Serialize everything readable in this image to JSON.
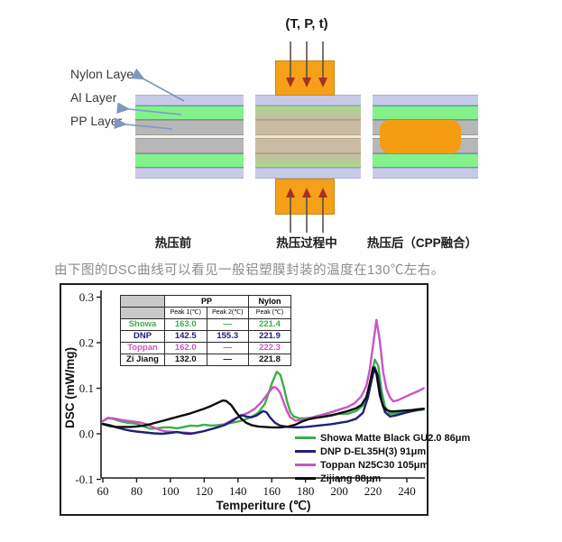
{
  "diagram": {
    "press_label": "(T, P, t)",
    "layer_labels": [
      "Nylon Layer",
      "Al Layer",
      "PP Layer"
    ],
    "captions": [
      "热压前",
      "热压过程中",
      "热压后（CPP融合）"
    ],
    "colors": {
      "nylon": "#c8cbe8",
      "al_green": "#84f18b",
      "pp_gray": "#b7b7b9",
      "seam": "#f4f2ea",
      "melted_green_top": "#a9d890",
      "melted_tan": "#c9bca3",
      "melted_seam": "#efe7d5",
      "press_orange": "#f6a01a",
      "cpp_blob": "#f59d12",
      "label_arrow": "#7e96c2",
      "press_arrow_stem": "#56514a",
      "press_arrow_head": "#a53125"
    }
  },
  "description": "由下图的DSC曲线可以看见一般铝塑膜封装的温度在130℃左右。",
  "chart_data": {
    "type": "line",
    "title": "",
    "xlabel": "Temperiture (℃)",
    "ylabel": "DSC (mW/mg)",
    "xlim": [
      55,
      252
    ],
    "ylim": [
      -0.1,
      0.31
    ],
    "grid": false,
    "legend_position": "lower right inside",
    "xticks": [
      60,
      80,
      100,
      120,
      140,
      160,
      180,
      200,
      220,
      240
    ],
    "ytick_labels": [
      "0.3",
      "0.2",
      "0.1",
      "0.0",
      "-0.1"
    ],
    "series": [
      {
        "name": "Showa",
        "legend_label": "Showa Matte Black GU2.0 86μm",
        "color": "#3bae4b",
        "points": [
          [
            60,
            0.028
          ],
          [
            63,
            0.034
          ],
          [
            66,
            0.033
          ],
          [
            70,
            0.028
          ],
          [
            75,
            0.024
          ],
          [
            80,
            0.022
          ],
          [
            85,
            0.015
          ],
          [
            88,
            0.011
          ],
          [
            92,
            0.012
          ],
          [
            96,
            0.014
          ],
          [
            100,
            0.014
          ],
          [
            104,
            0.012
          ],
          [
            108,
            0.015
          ],
          [
            112,
            0.018
          ],
          [
            116,
            0.017
          ],
          [
            120,
            0.02
          ],
          [
            124,
            0.018
          ],
          [
            128,
            0.019
          ],
          [
            132,
            0.021
          ],
          [
            136,
            0.024
          ],
          [
            140,
            0.027
          ],
          [
            144,
            0.031
          ],
          [
            148,
            0.037
          ],
          [
            152,
            0.046
          ],
          [
            156,
            0.066
          ],
          [
            160,
            0.11
          ],
          [
            163,
            0.136
          ],
          [
            165,
            0.13
          ],
          [
            167,
            0.105
          ],
          [
            169,
            0.072
          ],
          [
            171,
            0.048
          ],
          [
            173,
            0.038
          ],
          [
            176,
            0.034
          ],
          [
            180,
            0.034
          ],
          [
            185,
            0.036
          ],
          [
            190,
            0.039
          ],
          [
            195,
            0.041
          ],
          [
            200,
            0.044
          ],
          [
            205,
            0.044
          ],
          [
            210,
            0.05
          ],
          [
            214,
            0.062
          ],
          [
            217,
            0.09
          ],
          [
            219,
            0.125
          ],
          [
            221,
            0.163
          ],
          [
            223,
            0.15
          ],
          [
            225,
            0.095
          ],
          [
            227,
            0.06
          ],
          [
            230,
            0.044
          ],
          [
            233,
            0.045
          ],
          [
            237,
            0.047
          ],
          [
            241,
            0.049
          ],
          [
            245,
            0.051
          ],
          [
            250,
            0.053
          ]
        ]
      },
      {
        "name": "Toppan",
        "legend_label": "Toppan N25C30 105μm",
        "color": "#cb54c5",
        "points": [
          [
            60,
            0.028
          ],
          [
            63,
            0.035
          ],
          [
            66,
            0.034
          ],
          [
            70,
            0.031
          ],
          [
            74,
            0.029
          ],
          [
            78,
            0.027
          ],
          [
            82,
            0.025
          ],
          [
            86,
            0.021
          ],
          [
            90,
            0.014
          ],
          [
            94,
            0.008
          ],
          [
            98,
            0.005
          ],
          [
            102,
            0.004
          ],
          [
            106,
            0.003
          ],
          [
            110,
            0.002
          ],
          [
            114,
            0.001
          ],
          [
            118,
            0.004
          ],
          [
            122,
            0.008
          ],
          [
            126,
            0.012
          ],
          [
            130,
            0.017
          ],
          [
            134,
            0.025
          ],
          [
            138,
            0.033
          ],
          [
            142,
            0.04
          ],
          [
            146,
            0.046
          ],
          [
            150,
            0.055
          ],
          [
            154,
            0.07
          ],
          [
            158,
            0.09
          ],
          [
            161,
            0.103
          ],
          [
            163,
            0.1
          ],
          [
            165,
            0.09
          ],
          [
            167,
            0.07
          ],
          [
            169,
            0.05
          ],
          [
            171,
            0.036
          ],
          [
            174,
            0.029
          ],
          [
            178,
            0.03
          ],
          [
            182,
            0.034
          ],
          [
            186,
            0.038
          ],
          [
            190,
            0.042
          ],
          [
            195,
            0.047
          ],
          [
            200,
            0.053
          ],
          [
            205,
            0.059
          ],
          [
            209,
            0.067
          ],
          [
            213,
            0.082
          ],
          [
            216,
            0.105
          ],
          [
            218,
            0.14
          ],
          [
            220,
            0.195
          ],
          [
            222,
            0.25
          ],
          [
            224,
            0.205
          ],
          [
            226,
            0.135
          ],
          [
            228,
            0.098
          ],
          [
            230,
            0.08
          ],
          [
            232,
            0.071
          ],
          [
            235,
            0.074
          ],
          [
            239,
            0.081
          ],
          [
            243,
            0.088
          ],
          [
            247,
            0.094
          ],
          [
            250,
            0.1
          ]
        ]
      },
      {
        "name": "DNP",
        "legend_label": "DNP D-EL35H(3) 91μm",
        "color": "#20207a",
        "points": [
          [
            60,
            0.022
          ],
          [
            64,
            0.019
          ],
          [
            68,
            0.014
          ],
          [
            72,
            0.01
          ],
          [
            76,
            0.007
          ],
          [
            80,
            0.005
          ],
          [
            85,
            0.003
          ],
          [
            90,
            0.001
          ],
          [
            95,
            0.0
          ],
          [
            100,
            0.002
          ],
          [
            104,
            0.004
          ],
          [
            108,
            0.001
          ],
          [
            112,
            0.0
          ],
          [
            116,
            0.003
          ],
          [
            120,
            0.006
          ],
          [
            124,
            0.01
          ],
          [
            128,
            0.014
          ],
          [
            132,
            0.019
          ],
          [
            136,
            0.027
          ],
          [
            140,
            0.036
          ],
          [
            142,
            0.041
          ],
          [
            145,
            0.038
          ],
          [
            148,
            0.036
          ],
          [
            151,
            0.04
          ],
          [
            155,
            0.05
          ],
          [
            157,
            0.047
          ],
          [
            159,
            0.036
          ],
          [
            162,
            0.024
          ],
          [
            165,
            0.018
          ],
          [
            170,
            0.015
          ],
          [
            175,
            0.014
          ],
          [
            180,
            0.015
          ],
          [
            185,
            0.017
          ],
          [
            190,
            0.019
          ],
          [
            195,
            0.021
          ],
          [
            200,
            0.024
          ],
          [
            205,
            0.027
          ],
          [
            210,
            0.033
          ],
          [
            214,
            0.046
          ],
          [
            217,
            0.08
          ],
          [
            219,
            0.115
          ],
          [
            221,
            0.146
          ],
          [
            223,
            0.125
          ],
          [
            225,
            0.072
          ],
          [
            227,
            0.048
          ],
          [
            230,
            0.038
          ],
          [
            233,
            0.04
          ],
          [
            237,
            0.044
          ],
          [
            241,
            0.048
          ],
          [
            245,
            0.051
          ],
          [
            250,
            0.055
          ]
        ]
      },
      {
        "name": "Zi Jiang",
        "legend_label": "Zijiang 88μm",
        "color": "#0d0d0d",
        "points": [
          [
            60,
            0.021
          ],
          [
            64,
            0.017
          ],
          [
            68,
            0.015
          ],
          [
            72,
            0.015
          ],
          [
            76,
            0.015
          ],
          [
            80,
            0.016
          ],
          [
            84,
            0.018
          ],
          [
            88,
            0.021
          ],
          [
            92,
            0.025
          ],
          [
            96,
            0.029
          ],
          [
            100,
            0.033
          ],
          [
            104,
            0.037
          ],
          [
            108,
            0.041
          ],
          [
            112,
            0.045
          ],
          [
            116,
            0.05
          ],
          [
            120,
            0.055
          ],
          [
            124,
            0.061
          ],
          [
            128,
            0.068
          ],
          [
            131,
            0.073
          ],
          [
            133,
            0.072
          ],
          [
            136,
            0.063
          ],
          [
            139,
            0.047
          ],
          [
            142,
            0.033
          ],
          [
            145,
            0.024
          ],
          [
            148,
            0.019
          ],
          [
            152,
            0.016
          ],
          [
            156,
            0.015
          ],
          [
            160,
            0.014
          ],
          [
            165,
            0.014
          ],
          [
            170,
            0.016
          ],
          [
            174,
            0.02
          ],
          [
            178,
            0.027
          ],
          [
            182,
            0.032
          ],
          [
            186,
            0.035
          ],
          [
            190,
            0.037
          ],
          [
            195,
            0.04
          ],
          [
            200,
            0.045
          ],
          [
            205,
            0.05
          ],
          [
            210,
            0.056
          ],
          [
            213,
            0.063
          ],
          [
            216,
            0.08
          ],
          [
            218,
            0.11
          ],
          [
            220,
            0.146
          ],
          [
            222,
            0.132
          ],
          [
            224,
            0.085
          ],
          [
            226,
            0.06
          ],
          [
            228,
            0.052
          ],
          [
            231,
            0.049
          ],
          [
            235,
            0.05
          ],
          [
            239,
            0.051
          ],
          [
            243,
            0.052
          ],
          [
            247,
            0.054
          ],
          [
            250,
            0.055
          ]
        ]
      }
    ],
    "legend_order": [
      "Showa",
      "DNP",
      "Toppan",
      "Zi Jiang"
    ],
    "inset_table": {
      "group_headers": [
        "PP",
        "Nylon"
      ],
      "sub_headers": [
        "Peak 1(℃)",
        "Peak 2(℃)",
        "Peak (℃)"
      ],
      "rows": [
        {
          "name": "Showa",
          "color": "#3bae4b",
          "pp_peak1": "163.0",
          "pp_peak2": "—",
          "nylon_peak": "221.4"
        },
        {
          "name": "DNP",
          "color": "#20207a",
          "pp_peak1": "142.5",
          "pp_peak2": "155.3",
          "nylon_peak": "221.9"
        },
        {
          "name": "Toppan",
          "color": "#cb54c5",
          "pp_peak1": "162.0",
          "pp_peak2": "—",
          "nylon_peak": "222.3"
        },
        {
          "name": "Zi Jiang",
          "color": "#111111",
          "pp_peak1": "132.0",
          "pp_peak2": "—",
          "nylon_peak": "221.8"
        }
      ]
    }
  }
}
